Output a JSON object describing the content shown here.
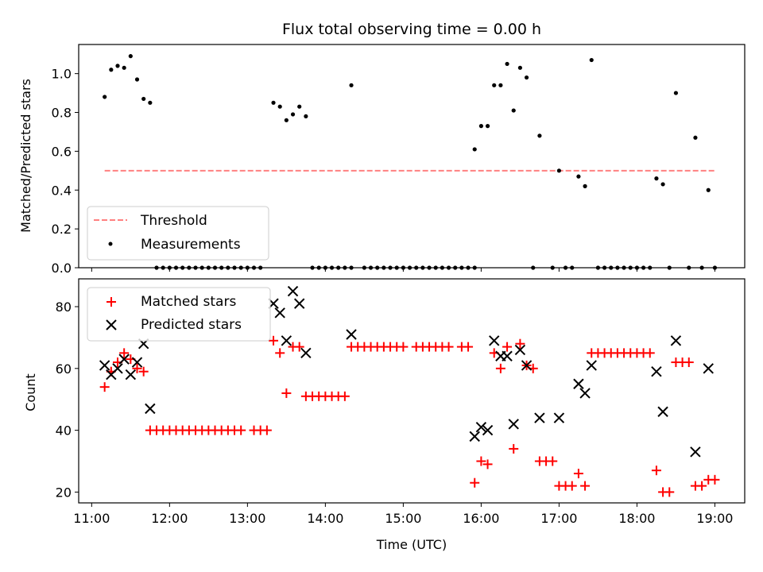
{
  "chart_data": [
    {
      "type": "scatter",
      "title": "Flux total observing time = 0.00 h",
      "ylabel": "Matched/Predicted stars",
      "xlim": [
        "10:50",
        "19:23"
      ],
      "ylim": [
        0,
        1.15
      ],
      "yticks": [
        "0.0",
        "0.2",
        "0.4",
        "0.6",
        "0.8",
        "1.0"
      ],
      "legend": "lower-left",
      "threshold": {
        "name": "Threshold",
        "value": 0.5,
        "x_range": [
          "11:10",
          "19:00"
        ],
        "color": "#ff8080"
      },
      "series": [
        {
          "name": "Measurements",
          "color": "#000000",
          "points": [
            [
              "11:10",
              0.88
            ],
            [
              "11:15",
              1.02
            ],
            [
              "11:20",
              1.04
            ],
            [
              "11:25",
              1.03
            ],
            [
              "11:30",
              1.09
            ],
            [
              "11:35",
              0.97
            ],
            [
              "11:40",
              0.87
            ],
            [
              "11:45",
              0.85
            ],
            [
              "11:50",
              0
            ],
            [
              "11:55",
              0
            ],
            [
              "12:00",
              0
            ],
            [
              "12:05",
              0
            ],
            [
              "12:10",
              0
            ],
            [
              "12:15",
              0
            ],
            [
              "12:20",
              0
            ],
            [
              "12:25",
              0
            ],
            [
              "12:30",
              0
            ],
            [
              "12:35",
              0
            ],
            [
              "12:40",
              0
            ],
            [
              "12:45",
              0
            ],
            [
              "12:50",
              0
            ],
            [
              "12:55",
              0
            ],
            [
              "13:00",
              0
            ],
            [
              "13:05",
              0
            ],
            [
              "13:10",
              0
            ],
            [
              "13:20",
              0.85
            ],
            [
              "13:25",
              0.83
            ],
            [
              "13:30",
              0.76
            ],
            [
              "13:35",
              0.79
            ],
            [
              "13:40",
              0.83
            ],
            [
              "13:45",
              0.78
            ],
            [
              "13:50",
              0
            ],
            [
              "13:55",
              0
            ],
            [
              "14:00",
              0
            ],
            [
              "14:05",
              0
            ],
            [
              "14:10",
              0
            ],
            [
              "14:15",
              0
            ],
            [
              "14:20",
              0
            ],
            [
              "14:20",
              0.94
            ],
            [
              "14:30",
              0
            ],
            [
              "14:35",
              0
            ],
            [
              "14:40",
              0
            ],
            [
              "14:45",
              0
            ],
            [
              "14:50",
              0
            ],
            [
              "14:55",
              0
            ],
            [
              "15:00",
              0
            ],
            [
              "15:05",
              0
            ],
            [
              "15:10",
              0
            ],
            [
              "15:15",
              0
            ],
            [
              "15:20",
              0
            ],
            [
              "15:25",
              0
            ],
            [
              "15:30",
              0
            ],
            [
              "15:35",
              0
            ],
            [
              "15:40",
              0
            ],
            [
              "15:45",
              0
            ],
            [
              "15:50",
              0
            ],
            [
              "15:55",
              0
            ],
            [
              "15:55",
              0.61
            ],
            [
              "16:00",
              0.73
            ],
            [
              "16:05",
              0.73
            ],
            [
              "16:10",
              0.94
            ],
            [
              "16:15",
              0.94
            ],
            [
              "16:20",
              1.05
            ],
            [
              "16:25",
              0.81
            ],
            [
              "16:30",
              1.03
            ],
            [
              "16:35",
              0.98
            ],
            [
              "16:40",
              0
            ],
            [
              "16:45",
              0.68
            ],
            [
              "16:55",
              0
            ],
            [
              "17:00",
              0.5
            ],
            [
              "17:05",
              0
            ],
            [
              "17:10",
              0
            ],
            [
              "17:15",
              0.47
            ],
            [
              "17:20",
              0.42
            ],
            [
              "17:25",
              1.07
            ],
            [
              "17:30",
              0
            ],
            [
              "17:35",
              0
            ],
            [
              "17:40",
              0
            ],
            [
              "17:45",
              0
            ],
            [
              "17:50",
              0
            ],
            [
              "17:55",
              0
            ],
            [
              "18:00",
              0
            ],
            [
              "18:05",
              0
            ],
            [
              "18:10",
              0
            ],
            [
              "18:15",
              0.46
            ],
            [
              "18:20",
              0.43
            ],
            [
              "18:25",
              0
            ],
            [
              "18:30",
              0.9
            ],
            [
              "18:40",
              0
            ],
            [
              "18:45",
              0.67
            ],
            [
              "18:50",
              0
            ],
            [
              "18:55",
              0.4
            ],
            [
              "19:00",
              0
            ]
          ]
        }
      ]
    },
    {
      "type": "scatter",
      "xlabel": "Time (UTC)",
      "ylabel": "Count",
      "xlim": [
        "10:50",
        "19:23"
      ],
      "ylim": [
        16.5,
        89
      ],
      "xticks": [
        "11:00",
        "12:00",
        "13:00",
        "14:00",
        "15:00",
        "16:00",
        "17:00",
        "18:00",
        "19:00"
      ],
      "yticks": [
        "20",
        "40",
        "60",
        "80"
      ],
      "legend": "upper-left",
      "series": [
        {
          "name": "Matched stars",
          "marker": "plus",
          "color": "#ff0000",
          "points": [
            [
              "11:10",
              54
            ],
            [
              "11:15",
              59
            ],
            [
              "11:20",
              62
            ],
            [
              "11:25",
              65
            ],
            [
              "11:30",
              63
            ],
            [
              "11:35",
              60
            ],
            [
              "11:40",
              59
            ],
            [
              "11:45",
              40
            ],
            [
              "11:50",
              40
            ],
            [
              "11:55",
              40
            ],
            [
              "12:00",
              40
            ],
            [
              "12:05",
              40
            ],
            [
              "12:10",
              40
            ],
            [
              "12:15",
              40
            ],
            [
              "12:20",
              40
            ],
            [
              "12:25",
              40
            ],
            [
              "12:30",
              40
            ],
            [
              "12:35",
              40
            ],
            [
              "12:40",
              40
            ],
            [
              "12:45",
              40
            ],
            [
              "12:50",
              40
            ],
            [
              "12:55",
              40
            ],
            [
              "13:05",
              40
            ],
            [
              "13:10",
              40
            ],
            [
              "13:15",
              40
            ],
            [
              "13:20",
              69
            ],
            [
              "13:25",
              65
            ],
            [
              "13:30",
              52
            ],
            [
              "13:35",
              67
            ],
            [
              "13:40",
              67
            ],
            [
              "13:45",
              51
            ],
            [
              "13:50",
              51
            ],
            [
              "13:55",
              51
            ],
            [
              "14:00",
              51
            ],
            [
              "14:05",
              51
            ],
            [
              "14:10",
              51
            ],
            [
              "14:15",
              51
            ],
            [
              "14:20",
              67
            ],
            [
              "14:25",
              67
            ],
            [
              "14:30",
              67
            ],
            [
              "14:35",
              67
            ],
            [
              "14:40",
              67
            ],
            [
              "14:45",
              67
            ],
            [
              "14:50",
              67
            ],
            [
              "14:55",
              67
            ],
            [
              "15:00",
              67
            ],
            [
              "15:10",
              67
            ],
            [
              "15:15",
              67
            ],
            [
              "15:20",
              67
            ],
            [
              "15:25",
              67
            ],
            [
              "15:30",
              67
            ],
            [
              "15:35",
              67
            ],
            [
              "15:45",
              67
            ],
            [
              "15:50",
              67
            ],
            [
              "15:55",
              23
            ],
            [
              "16:00",
              30
            ],
            [
              "16:05",
              29
            ],
            [
              "16:10",
              65
            ],
            [
              "16:15",
              60
            ],
            [
              "16:20",
              67
            ],
            [
              "16:25",
              34
            ],
            [
              "16:30",
              68
            ],
            [
              "16:35",
              61
            ],
            [
              "16:40",
              60
            ],
            [
              "16:45",
              30
            ],
            [
              "16:50",
              30
            ],
            [
              "16:55",
              30
            ],
            [
              "17:00",
              22
            ],
            [
              "17:05",
              22
            ],
            [
              "17:10",
              22
            ],
            [
              "17:15",
              26
            ],
            [
              "17:20",
              22
            ],
            [
              "17:25",
              65
            ],
            [
              "17:30",
              65
            ],
            [
              "17:35",
              65
            ],
            [
              "17:40",
              65
            ],
            [
              "17:45",
              65
            ],
            [
              "17:50",
              65
            ],
            [
              "17:55",
              65
            ],
            [
              "18:00",
              65
            ],
            [
              "18:05",
              65
            ],
            [
              "18:10",
              65
            ],
            [
              "18:15",
              27
            ],
            [
              "18:20",
              20
            ],
            [
              "18:25",
              20
            ],
            [
              "18:30",
              62
            ],
            [
              "18:35",
              62
            ],
            [
              "18:40",
              62
            ],
            [
              "18:45",
              22
            ],
            [
              "18:50",
              22
            ],
            [
              "18:55",
              24
            ],
            [
              "19:00",
              24
            ]
          ]
        },
        {
          "name": "Predicted stars",
          "marker": "x",
          "color": "#000000",
          "points": [
            [
              "11:10",
              61
            ],
            [
              "11:15",
              58
            ],
            [
              "11:20",
              60
            ],
            [
              "11:25",
              63
            ],
            [
              "11:30",
              58
            ],
            [
              "11:35",
              62
            ],
            [
              "11:40",
              68
            ],
            [
              "11:45",
              47
            ],
            [
              "13:20",
              81
            ],
            [
              "13:25",
              78
            ],
            [
              "13:30",
              69
            ],
            [
              "13:35",
              85
            ],
            [
              "13:40",
              81
            ],
            [
              "13:45",
              65
            ],
            [
              "14:20",
              71
            ],
            [
              "15:55",
              38
            ],
            [
              "16:00",
              41
            ],
            [
              "16:05",
              40
            ],
            [
              "16:10",
              69
            ],
            [
              "16:15",
              64
            ],
            [
              "16:20",
              64
            ],
            [
              "16:25",
              42
            ],
            [
              "16:30",
              66
            ],
            [
              "16:35",
              61
            ],
            [
              "16:45",
              44
            ],
            [
              "17:00",
              44
            ],
            [
              "17:15",
              55
            ],
            [
              "17:20",
              52
            ],
            [
              "17:25",
              61
            ],
            [
              "18:15",
              59
            ],
            [
              "18:20",
              46
            ],
            [
              "18:30",
              69
            ],
            [
              "18:45",
              33
            ],
            [
              "18:55",
              60
            ]
          ]
        }
      ]
    }
  ]
}
